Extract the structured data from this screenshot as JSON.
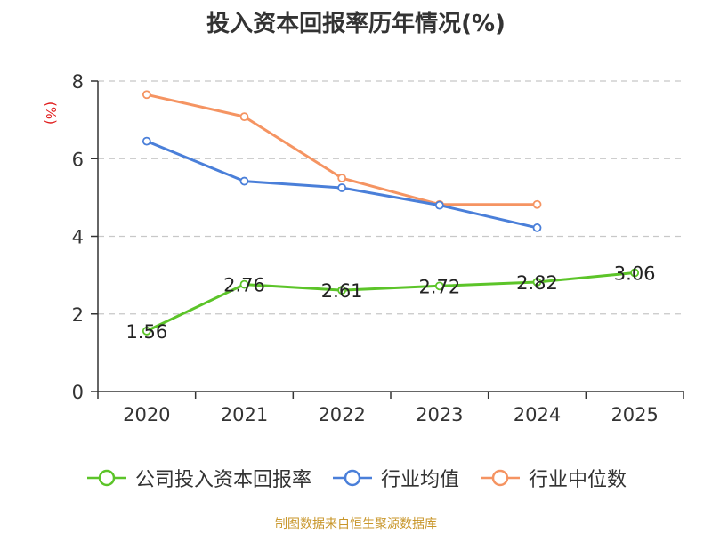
{
  "chart_data": {
    "type": "line",
    "title": "投入资本回报率历年情况(%)",
    "ylabel": "(%)",
    "xlabel": "",
    "ylim": [
      0,
      8
    ],
    "yticks": [
      0,
      2,
      4,
      6,
      8
    ],
    "grid": true,
    "categories": [
      "2020",
      "2021",
      "2022",
      "2023",
      "2024",
      "2025"
    ],
    "series": [
      {
        "name": "公司投入资本回报率",
        "color": "#5cc429",
        "values": [
          1.56,
          2.76,
          2.61,
          2.72,
          2.82,
          3.06
        ],
        "labels": [
          "1.56",
          "2.76",
          "2.61",
          "2.72",
          "2.82",
          "3.06"
        ]
      },
      {
        "name": "行业均值",
        "color": "#4a7fd9",
        "values": [
          6.45,
          5.42,
          5.25,
          4.8,
          4.22,
          null
        ]
      },
      {
        "name": "行业中位数",
        "color": "#f59462",
        "values": [
          7.65,
          7.08,
          5.5,
          4.82,
          4.82,
          null
        ]
      }
    ],
    "legend_position": "bottom",
    "source": "制图数据来自恒生聚源数据库"
  }
}
